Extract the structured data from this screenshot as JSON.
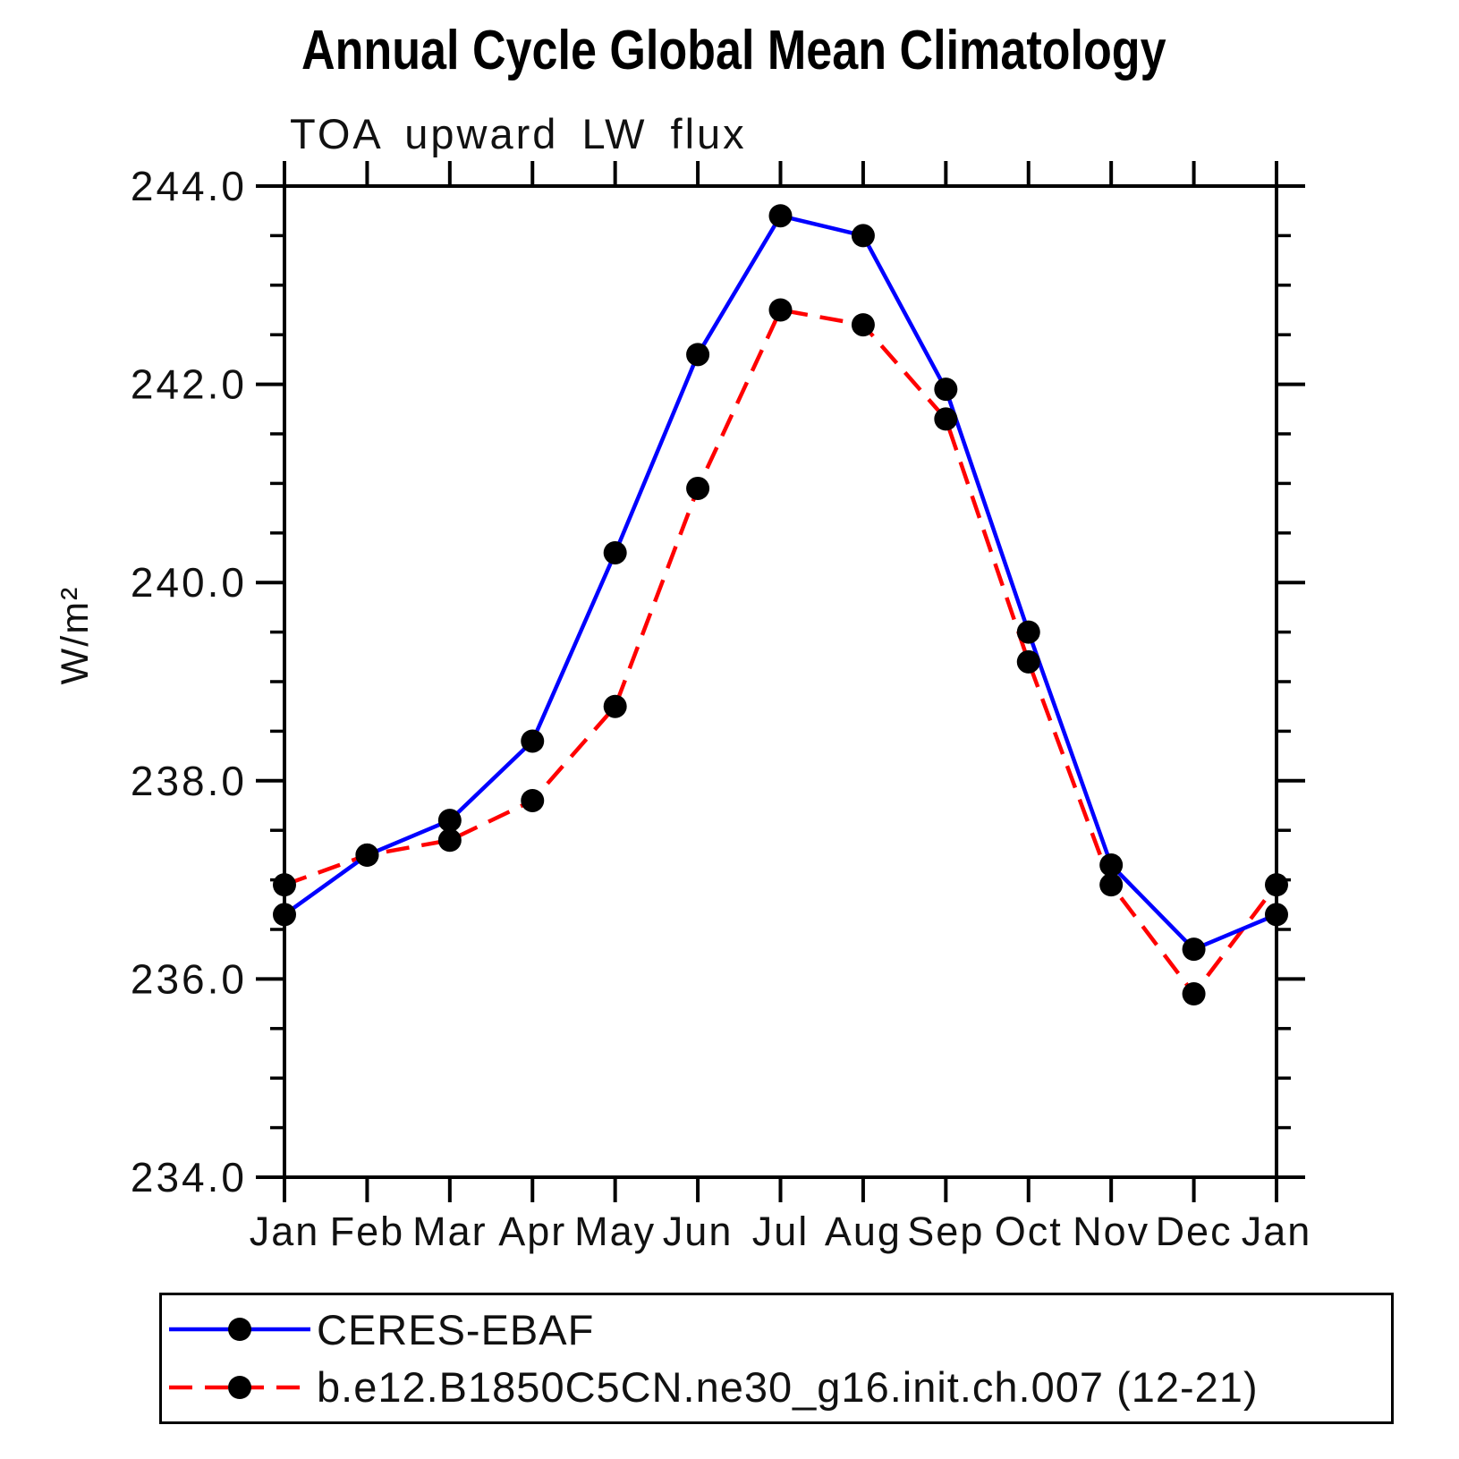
{
  "chart_data": {
    "type": "line",
    "title": "Annual Cycle Global Mean Climatology",
    "subtitle": "TOA upward LW flux",
    "ylabel": "W/m²",
    "x_tick_labels": [
      "Jan",
      "Feb",
      "Mar",
      "Apr",
      "May",
      "Jun",
      "Jul",
      "Aug",
      "Sep",
      "Oct",
      "Nov",
      "Dec",
      "Jan"
    ],
    "ylim": [
      234.0,
      244.0
    ],
    "y_major_tick_step": 2.0,
    "y_minor_tick_step": 0.5,
    "y_tick_labels": [
      "234.0",
      "236.0",
      "238.0",
      "240.0",
      "242.0",
      "244.0"
    ],
    "grid": false,
    "legend_position": "bottom-left",
    "axis_color": "#000000",
    "marker_color": "#000000",
    "series": [
      {
        "name": "CERES-EBAF",
        "color": "#0000ff",
        "line_style": "solid",
        "marker": "circle",
        "values": [
          236.65,
          237.25,
          237.6,
          238.4,
          240.3,
          242.3,
          243.7,
          243.5,
          241.95,
          239.5,
          237.15,
          236.3,
          236.65
        ]
      },
      {
        "name": "b.e12.B1850C5CN.ne30_g16.init.ch.007 (12-21)",
        "color": "#ff0000",
        "line_style": "dashed",
        "marker": "circle",
        "values": [
          236.95,
          237.25,
          237.4,
          237.8,
          238.75,
          240.95,
          242.75,
          242.6,
          241.65,
          239.2,
          236.95,
          235.85,
          236.95
        ]
      }
    ]
  }
}
